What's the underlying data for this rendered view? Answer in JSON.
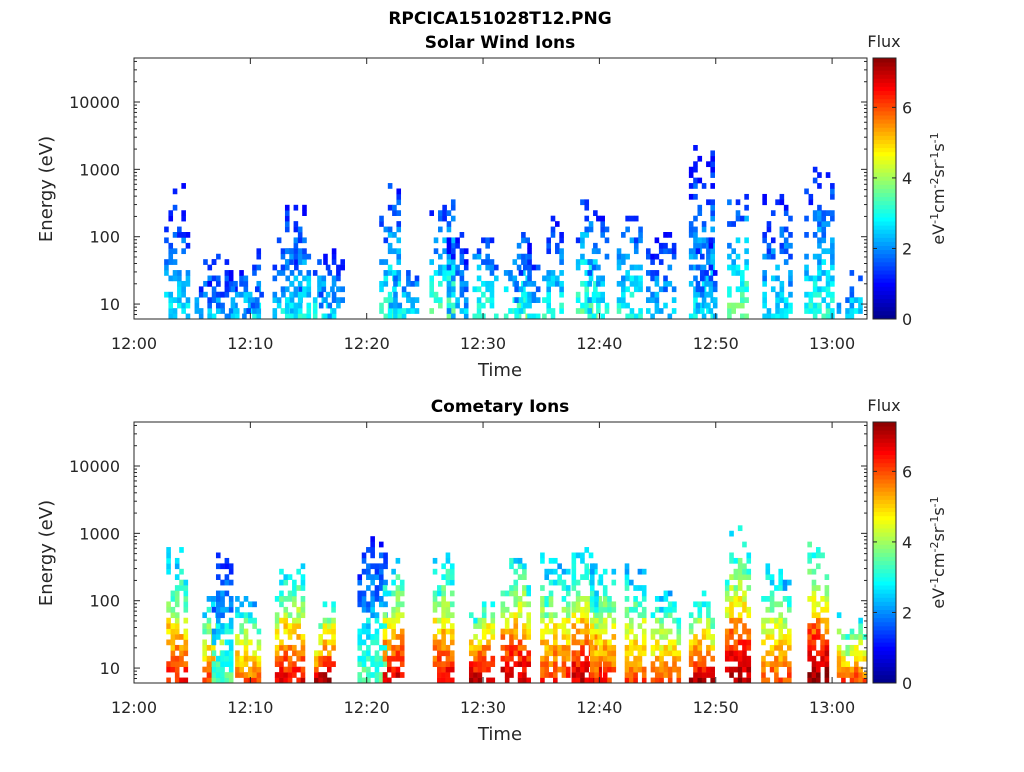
{
  "figure_title": "RPCICA151028T12.PNG",
  "colors": {
    "colormap": [
      "#00008f",
      "#0000ff",
      "#0080ff",
      "#00ffff",
      "#80ff80",
      "#ffff00",
      "#ff8000",
      "#ff0000",
      "#800000"
    ],
    "axis": "#262626",
    "background": "#ffffff"
  },
  "chart_data": [
    {
      "type": "heatmap",
      "title": "Solar Wind Ions",
      "xlabel": "Time",
      "ylabel": "Energy (eV)",
      "x_ticks": [
        "12:00",
        "12:10",
        "12:20",
        "12:30",
        "12:40",
        "12:50",
        "13:00"
      ],
      "x_range_min": [
        0,
        63
      ],
      "y_scale": "log",
      "y_range": [
        6,
        45000
      ],
      "y_ticks": [
        "10",
        "100",
        "1000",
        "10000"
      ],
      "colorbar": {
        "title": "Flux",
        "label": "eV^-1cm^-2sr^-1s^-1",
        "range": [
          0,
          7.4
        ],
        "ticks": [
          "0",
          "2",
          "4",
          "6"
        ]
      },
      "bursts": [
        {
          "t": 3.7,
          "emax": 700,
          "flux": 2.6
        },
        {
          "t": 6.5,
          "emax": 75,
          "flux": 2.4
        },
        {
          "t": 7.6,
          "emax": 60,
          "flux": 2.2
        },
        {
          "t": 9.6,
          "emax": 70,
          "flux": 2.6
        },
        {
          "t": 10.4,
          "emax": 20,
          "flux": 2.0
        },
        {
          "t": 13.2,
          "emax": 120,
          "flux": 2.6
        },
        {
          "t": 13.9,
          "emax": 400,
          "flux": 2.8
        },
        {
          "t": 16.3,
          "emax": 80,
          "flux": 3.0
        },
        {
          "t": 17.0,
          "emax": 90,
          "flux": 2.4
        },
        {
          "t": 22.0,
          "emax": 700,
          "flux": 3.2
        },
        {
          "t": 23.2,
          "emax": 60,
          "flux": 2.8
        },
        {
          "t": 26.5,
          "emax": 420,
          "flux": 3.4
        },
        {
          "t": 27.8,
          "emax": 180,
          "flux": 2.4
        },
        {
          "t": 30.2,
          "emax": 150,
          "flux": 3.2
        },
        {
          "t": 32.9,
          "emax": 140,
          "flux": 3.4
        },
        {
          "t": 33.8,
          "emax": 90,
          "flux": 2.6
        },
        {
          "t": 36.0,
          "emax": 300,
          "flux": 3.0
        },
        {
          "t": 38.9,
          "emax": 600,
          "flux": 3.4
        },
        {
          "t": 39.9,
          "emax": 300,
          "flux": 2.8
        },
        {
          "t": 42.6,
          "emax": 450,
          "flux": 3.0
        },
        {
          "t": 45.3,
          "emax": 220,
          "flux": 2.4
        },
        {
          "t": 48.8,
          "emax": 3500,
          "flux": 2.6
        },
        {
          "t": 49.2,
          "emax": 120,
          "flux": 2.4
        },
        {
          "t": 51.9,
          "emax": 600,
          "flux": 3.6
        },
        {
          "t": 55.3,
          "emax": 550,
          "flux": 2.6
        },
        {
          "t": 58.9,
          "emax": 1200,
          "flux": 3.0
        },
        {
          "t": 61.5,
          "emax": 35,
          "flux": 2.8
        }
      ]
    },
    {
      "type": "heatmap",
      "title": "Cometary Ions",
      "xlabel": "Time",
      "ylabel": "Energy (eV)",
      "x_ticks": [
        "12:00",
        "12:10",
        "12:20",
        "12:30",
        "12:40",
        "12:50",
        "13:00"
      ],
      "x_range_min": [
        0,
        63
      ],
      "y_scale": "log",
      "y_range": [
        6,
        45000
      ],
      "y_ticks": [
        "10",
        "100",
        "1000",
        "10000"
      ],
      "colorbar": {
        "title": "Flux",
        "label": "eV^-1cm^-2sr^-1s^-1",
        "range": [
          0,
          7.4
        ],
        "ticks": [
          "0",
          "2",
          "4",
          "6"
        ]
      },
      "bursts": [
        {
          "t": 3.7,
          "emax": 800,
          "flux": 6.0
        },
        {
          "t": 6.8,
          "emax": 150,
          "flux": 5.6
        },
        {
          "t": 7.6,
          "emax": 750,
          "flux": 3.0
        },
        {
          "t": 9.8,
          "emax": 150,
          "flux": 5.4
        },
        {
          "t": 13.4,
          "emax": 420,
          "flux": 6.2
        },
        {
          "t": 16.4,
          "emax": 150,
          "flux": 6.6
        },
        {
          "t": 20.5,
          "emax": 1200,
          "flux": 3.0
        },
        {
          "t": 22.3,
          "emax": 550,
          "flux": 6.4
        },
        {
          "t": 26.6,
          "emax": 700,
          "flux": 6.2
        },
        {
          "t": 29.9,
          "emax": 150,
          "flux": 6.6
        },
        {
          "t": 32.8,
          "emax": 700,
          "flux": 6.6
        },
        {
          "t": 36.2,
          "emax": 600,
          "flux": 5.8
        },
        {
          "t": 38.9,
          "emax": 800,
          "flux": 6.4
        },
        {
          "t": 40.3,
          "emax": 500,
          "flux": 5.8
        },
        {
          "t": 43.1,
          "emax": 400,
          "flux": 5.6
        },
        {
          "t": 45.7,
          "emax": 250,
          "flux": 5.6
        },
        {
          "t": 48.8,
          "emax": 150,
          "flux": 6.6
        },
        {
          "t": 51.9,
          "emax": 1500,
          "flux": 6.8
        },
        {
          "t": 55.2,
          "emax": 500,
          "flux": 5.6
        },
        {
          "t": 58.8,
          "emax": 1500,
          "flux": 7.0
        },
        {
          "t": 61.7,
          "emax": 80,
          "flux": 5.6
        }
      ]
    }
  ]
}
